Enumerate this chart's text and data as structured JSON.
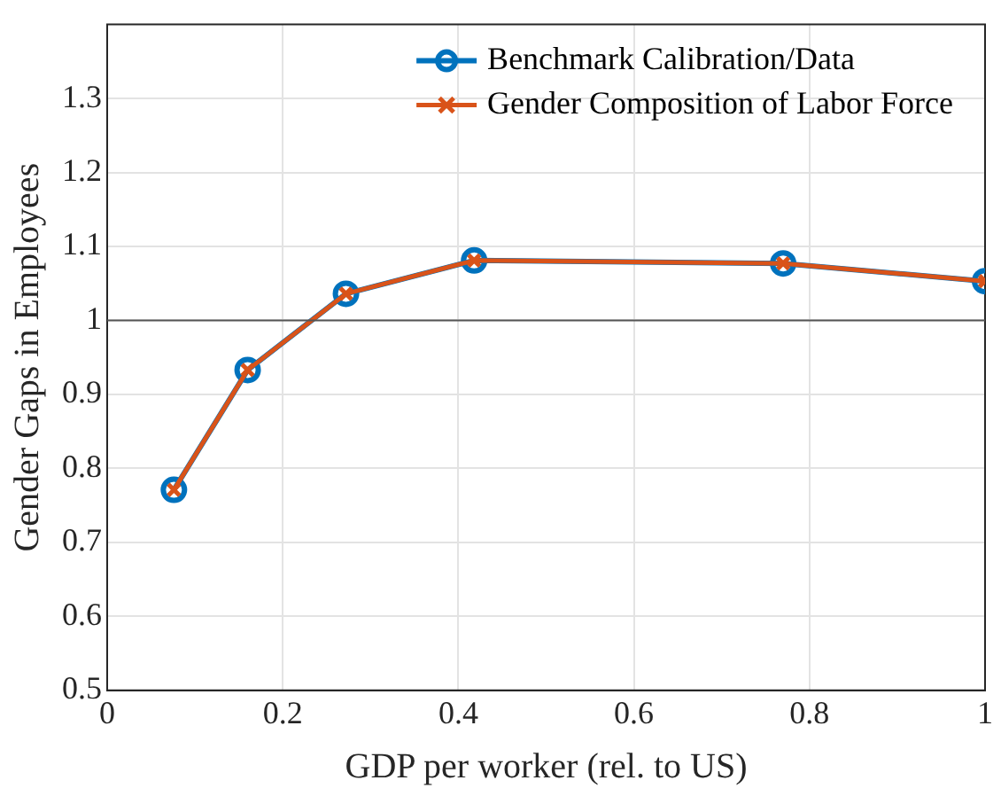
{
  "chart_data": {
    "type": "line",
    "xlabel": "GDP per worker (rel. to US)",
    "ylabel": "Gender Gaps in Employees",
    "x": [
      0.076,
      0.16,
      0.272,
      0.418,
      0.77,
      1.0
    ],
    "series": [
      {
        "name": "Benchmark Calibration/Data",
        "color": "#0072bd",
        "marker": "circle",
        "values": [
          0.771,
          0.933,
          1.036,
          1.081,
          1.077,
          1.053
        ]
      },
      {
        "name": "Gender Composition of Labor Force",
        "color": "#d95319",
        "marker": "cross",
        "values": [
          0.771,
          0.933,
          1.036,
          1.081,
          1.077,
          1.053
        ]
      }
    ],
    "xlim": [
      0,
      1
    ],
    "xticks": [
      0,
      0.2,
      0.4,
      0.6,
      0.8,
      1
    ],
    "ylim": [
      0.5,
      1.4
    ],
    "yticks": [
      0.5,
      0.6,
      0.7,
      0.8,
      0.9,
      1,
      1.1,
      1.2,
      1.3
    ],
    "ref_lines": [
      {
        "axis": "y",
        "value": 1,
        "color": "#555555"
      }
    ],
    "grid": true,
    "legend": "top right",
    "line_style": "solid"
  }
}
